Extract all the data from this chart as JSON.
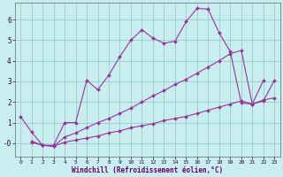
{
  "xlabel": "Windchill (Refroidissement éolien,°C)",
  "bg_color": "#c8eef0",
  "grid_color": "#99cccc",
  "line_color": "#993399",
  "xlim": [
    -0.5,
    23.5
  ],
  "ylim": [
    -0.65,
    6.8
  ],
  "xticks": [
    0,
    1,
    2,
    3,
    4,
    5,
    6,
    7,
    8,
    9,
    10,
    11,
    12,
    13,
    14,
    15,
    16,
    17,
    18,
    19,
    20,
    21,
    22,
    23
  ],
  "yticks": [
    0,
    1,
    2,
    3,
    4,
    5,
    6
  ],
  "ytick_labels": [
    "-0",
    "1",
    "2",
    "3",
    "4",
    "5",
    "6"
  ],
  "series1_x": [
    0,
    1,
    2,
    3,
    4,
    5,
    6,
    7,
    8,
    9,
    10,
    11,
    12,
    13,
    14,
    15,
    16,
    17,
    18,
    19,
    20,
    21,
    22
  ],
  "series1_y": [
    1.3,
    0.55,
    -0.1,
    -0.1,
    1.0,
    1.0,
    3.05,
    2.6,
    3.3,
    4.2,
    5.0,
    5.5,
    5.1,
    4.85,
    4.95,
    5.9,
    6.55,
    6.5,
    5.35,
    4.45,
    1.95,
    1.9,
    3.05
  ],
  "series2_x": [
    1,
    2,
    3,
    4,
    5,
    6,
    7,
    8,
    9,
    10,
    11,
    12,
    13,
    14,
    15,
    16,
    17,
    18,
    19,
    20,
    21,
    22,
    23
  ],
  "series2_y": [
    0.1,
    -0.1,
    -0.15,
    0.3,
    0.5,
    0.75,
    1.0,
    1.2,
    1.45,
    1.7,
    2.0,
    2.3,
    2.55,
    2.85,
    3.1,
    3.4,
    3.7,
    4.0,
    4.35,
    4.5,
    1.9,
    2.1,
    2.2
  ],
  "series3_x": [
    1,
    2,
    3,
    4,
    5,
    6,
    7,
    8,
    9,
    10,
    11,
    12,
    13,
    14,
    15,
    16,
    17,
    18,
    19,
    20,
    21,
    22,
    23
  ],
  "series3_y": [
    0.05,
    -0.1,
    -0.15,
    0.05,
    0.15,
    0.25,
    0.35,
    0.5,
    0.6,
    0.75,
    0.85,
    0.95,
    1.1,
    1.2,
    1.3,
    1.45,
    1.6,
    1.75,
    1.9,
    2.05,
    1.9,
    2.05,
    3.05
  ]
}
